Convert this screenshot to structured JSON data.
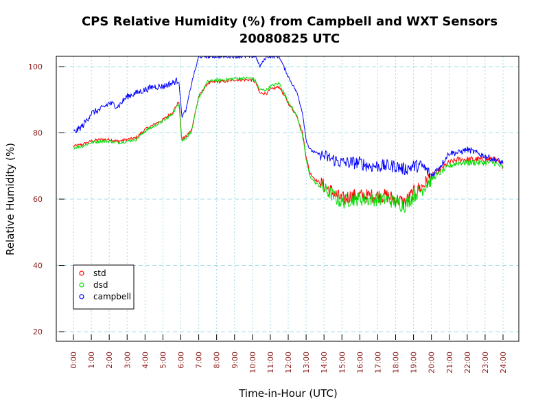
{
  "chart_data": {
    "type": "line",
    "title": "CPS Relative Humidity (%) from Campbell and WXT Sensors",
    "subtitle": "20080825  UTC",
    "xlabel": "Time-in-Hour (UTC)",
    "ylabel": "Relative Humidity (%)",
    "xlim": [
      0,
      24
    ],
    "ylim": [
      20,
      100
    ],
    "grid": true,
    "legend_position": "bottom-left",
    "x_tick_labels": [
      "0:00",
      "1:00",
      "2:00",
      "3:00",
      "4:00",
      "5:00",
      "6:00",
      "7:00",
      "8:00",
      "9:00",
      "10:00",
      "11:00",
      "12:00",
      "13:00",
      "14:00",
      "15:00",
      "16:00",
      "17:00",
      "18:00",
      "19:00",
      "20:00",
      "21:00",
      "22:00",
      "23:00",
      "24:00"
    ],
    "y_tick_labels": [
      "20",
      "40",
      "60",
      "80",
      "100"
    ],
    "x_hours": [
      0,
      0.5,
      1,
      1.5,
      2,
      2.5,
      3,
      3.5,
      4,
      4.5,
      5,
      5.5,
      5.9,
      6.05,
      6.3,
      6.6,
      7,
      7.5,
      8,
      8.5,
      9,
      9.5,
      10,
      10.2,
      10.4,
      10.8,
      11,
      11.5,
      12,
      12.5,
      12.8,
      13,
      13.2,
      13.5,
      14,
      14.5,
      15,
      15.5,
      16,
      16.5,
      17,
      17.5,
      18,
      18.5,
      19,
      19.5,
      20,
      20.5,
      21,
      21.5,
      22,
      22.5,
      23,
      23.5,
      24
    ],
    "series": [
      {
        "name": "std",
        "color": "#ff0000",
        "values": [
          76,
          76.5,
          77.5,
          78,
          78,
          77.5,
          78,
          78.5,
          81,
          82.5,
          84,
          86,
          89.5,
          78,
          79,
          81,
          91,
          95,
          95.5,
          95.5,
          96,
          96,
          96,
          95,
          92,
          92,
          93,
          94,
          89,
          85,
          80,
          73,
          68,
          66,
          64,
          62,
          60,
          61,
          61,
          61,
          61,
          61,
          60,
          59,
          62,
          64,
          67,
          69,
          71,
          72,
          72,
          72,
          72,
          72,
          70
        ]
      },
      {
        "name": "dsd",
        "color": "#00dd00",
        "values": [
          75.5,
          76,
          77,
          77.5,
          77.5,
          77,
          77.5,
          78,
          80.5,
          82,
          83.5,
          85.5,
          89,
          77.5,
          78.5,
          80.5,
          90.5,
          95.5,
          96,
          96,
          96.5,
          96.5,
          96.5,
          95.5,
          93,
          93,
          94,
          95,
          89.5,
          85,
          79,
          72,
          67,
          65,
          63,
          61,
          59,
          60,
          60,
          60,
          60,
          60,
          59,
          58,
          61,
          63,
          66,
          68,
          70,
          71,
          71,
          71,
          71,
          71,
          69.5
        ]
      },
      {
        "name": "campbell",
        "color": "#0000ff",
        "values": [
          80,
          82,
          86,
          87,
          89,
          88,
          91,
          92,
          93,
          94,
          94,
          95,
          96,
          85,
          87,
          95,
          103,
          103,
          103,
          103,
          103,
          103,
          103,
          103,
          100,
          103,
          103,
          103,
          97,
          92,
          86,
          78,
          75,
          74,
          73,
          72,
          71,
          71,
          71,
          70,
          70,
          70,
          70,
          69,
          70,
          70,
          67,
          70,
          74,
          74,
          75,
          74,
          73,
          72,
          71
        ]
      }
    ]
  }
}
